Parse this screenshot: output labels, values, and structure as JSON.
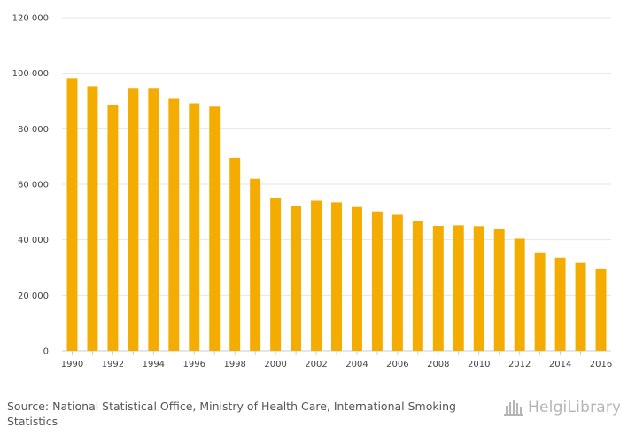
{
  "chart_data": {
    "type": "bar",
    "categories": [
      "1990",
      "1991",
      "1992",
      "1993",
      "1994",
      "1995",
      "1996",
      "1997",
      "1998",
      "1999",
      "2000",
      "2001",
      "2002",
      "2003",
      "2004",
      "2005",
      "2006",
      "2007",
      "2008",
      "2009",
      "2010",
      "2011",
      "2012",
      "2013",
      "2014",
      "2015",
      "2016"
    ],
    "x_tick_labels": [
      "1990",
      "1992",
      "1994",
      "1996",
      "1998",
      "2000",
      "2002",
      "2004",
      "2006",
      "2008",
      "2010",
      "2012",
      "2014",
      "2016"
    ],
    "values": [
      98200,
      95300,
      88600,
      94700,
      94700,
      90800,
      89200,
      88000,
      69600,
      62000,
      55000,
      52200,
      54100,
      53500,
      51800,
      50200,
      49000,
      46800,
      45000,
      45200,
      44900,
      43900,
      40400,
      35500,
      33600,
      31700,
      29400
    ],
    "y_ticks": [
      0,
      20000,
      40000,
      60000,
      80000,
      100000,
      120000
    ],
    "y_tick_labels": [
      "0",
      "20 000",
      "40 000",
      "60 000",
      "80 000",
      "100 000",
      "120 000"
    ],
    "ylim": [
      0,
      120000
    ],
    "grid": true,
    "bar_color": "#f5ac00",
    "grid_color": "#e6e6e6",
    "title": "",
    "xlabel": "",
    "ylabel": ""
  },
  "source": "Source: National Statistical Office, Ministry of Health Care, International Smoking Statistics",
  "brand": {
    "name": "HelgiLibrary",
    "icon": "library-building-icon",
    "color": "#b5b5b5"
  }
}
